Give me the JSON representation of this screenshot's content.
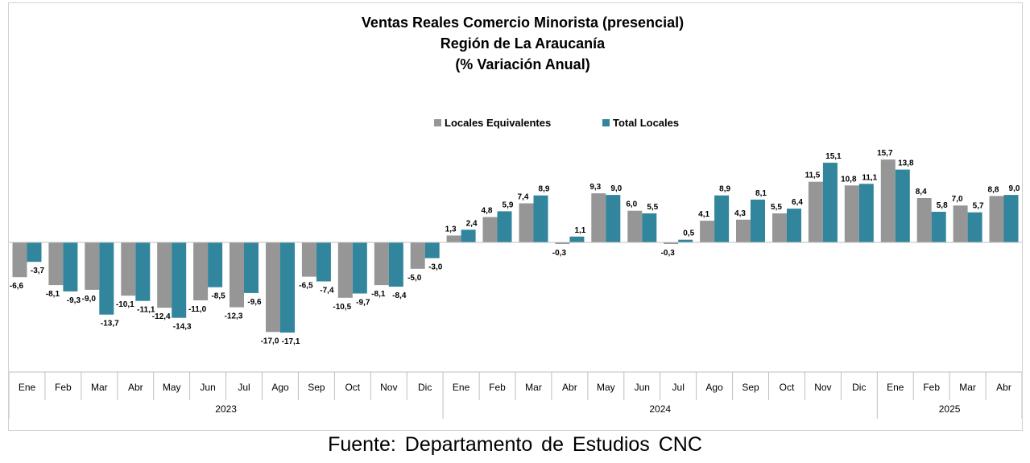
{
  "chart_data": {
    "type": "bar",
    "title": [
      "Ventas Reales Comercio Minorista (presencial)",
      "Región de La Araucanía",
      "(% Variación Anual)"
    ],
    "categories": [
      "Ene",
      "Feb",
      "Mar",
      "Abr",
      "May",
      "Jun",
      "Jul",
      "Ago",
      "Sep",
      "Oct",
      "Nov",
      "Dic",
      "Ene",
      "Feb",
      "Mar",
      "Abr",
      "May",
      "Jun",
      "Jul",
      "Ago",
      "Sep",
      "Oct",
      "Nov",
      "Dic",
      "Ene",
      "Feb",
      "Mar",
      "Abr"
    ],
    "year_groups": [
      {
        "label": "2023",
        "count": 12
      },
      {
        "label": "2024",
        "count": 12
      },
      {
        "label": "2025",
        "count": 4
      }
    ],
    "series": [
      {
        "name": "Locales Equivalentes",
        "color": "#969696",
        "values": [
          -6.6,
          -8.1,
          -9.0,
          -10.1,
          -12.4,
          -11.0,
          -12.3,
          -17.0,
          -6.5,
          -10.5,
          -8.1,
          -5.0,
          1.3,
          4.8,
          7.4,
          -0.3,
          9.3,
          6.0,
          -0.3,
          4.1,
          4.3,
          5.5,
          11.5,
          10.8,
          15.7,
          8.4,
          7.0,
          8.8
        ],
        "labels": [
          "-6,6",
          "-8,1",
          "-9,0",
          "-10,1",
          "-12,4",
          "-11,0",
          "-12,3",
          "-17,0",
          "-6,5",
          "-10,5",
          "-8,1",
          "-5,0",
          "1,3",
          "4,8",
          "7,4",
          "-0,3",
          "9,3",
          "6,0",
          "-0,3",
          "4,1",
          "4,3",
          "5,5",
          "11,5",
          "10,8",
          "15,7",
          "8,4",
          "7,0",
          "8,8"
        ]
      },
      {
        "name": "Total Locales",
        "color": "#31859c",
        "values": [
          -3.7,
          -9.3,
          -13.7,
          -11.1,
          -14.3,
          -8.5,
          -9.6,
          -17.1,
          -7.4,
          -9.7,
          -8.4,
          -3.0,
          2.4,
          5.9,
          8.9,
          1.1,
          9.0,
          5.5,
          0.5,
          8.9,
          8.1,
          6.4,
          15.1,
          11.1,
          13.8,
          5.8,
          5.7,
          9.0
        ],
        "labels": [
          "-3,7",
          "-9,3",
          "-13,7",
          "-11,1",
          "-14,3",
          "-8,5",
          "-9,6",
          "-17,1",
          "-7,4",
          "-9,7",
          "-8,4",
          "-3,0",
          "2,4",
          "5,9",
          "8,9",
          "1,1",
          "9,0",
          "5,5",
          "0,5",
          "8,9",
          "8,1",
          "6,4",
          "15,1",
          "11,1",
          "13,8",
          "5,8",
          "5,7",
          "9,0"
        ]
      }
    ],
    "legend_position": "top-center",
    "grid": false
  },
  "source": "Fuente:  Departamento  de Estudios  CNC"
}
